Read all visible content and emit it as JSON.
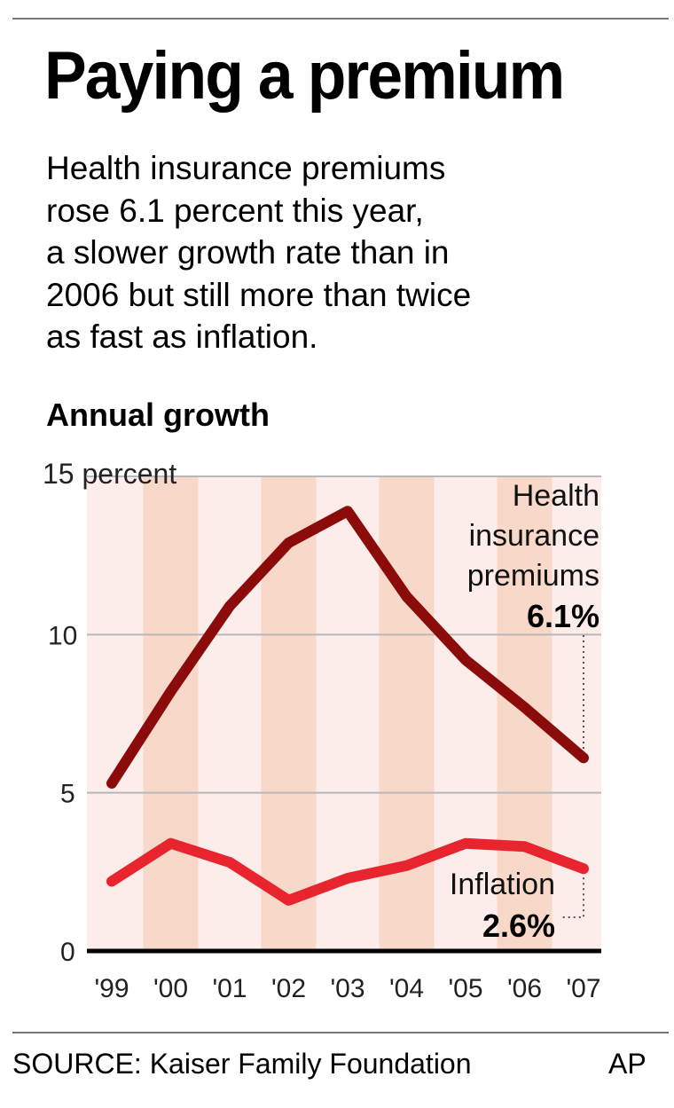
{
  "header": {
    "title": "Paying a premium",
    "subtitle_lines": [
      "Health insurance premiums",
      "rose 6.1 percent this year,",
      "a slower growth rate than in",
      "2006 but still more than twice",
      "as fast as inflation."
    ]
  },
  "chart_data": {
    "type": "line",
    "title": "Annual growth",
    "ylabel": "percent",
    "ylim": [
      0,
      15
    ],
    "yticks": [
      "15 percent",
      "10",
      "5",
      "0"
    ],
    "grid": true,
    "categories": [
      "'99",
      "'00",
      "'01",
      "'02",
      "'03",
      "'04",
      "'05",
      "'06",
      "'07"
    ],
    "series": [
      {
        "name": "Health insurance premiums",
        "name_lines": [
          "Health",
          "insurance",
          "premiums"
        ],
        "end_label": "6.1%",
        "color": "#8b0a0a",
        "values": [
          5.3,
          8.2,
          10.9,
          12.9,
          13.9,
          11.2,
          9.2,
          7.7,
          6.1
        ]
      },
      {
        "name": "Inflation",
        "name_lines": [
          "Inflation"
        ],
        "end_label": "2.6%",
        "color": "#e8242e",
        "values": [
          2.2,
          3.4,
          2.8,
          1.6,
          2.3,
          2.7,
          3.4,
          3.3,
          2.6
        ]
      }
    ],
    "band_color": "#f8d8c8"
  },
  "footer": {
    "source": "SOURCE: Kaiser Family Foundation",
    "credit": "AP"
  }
}
